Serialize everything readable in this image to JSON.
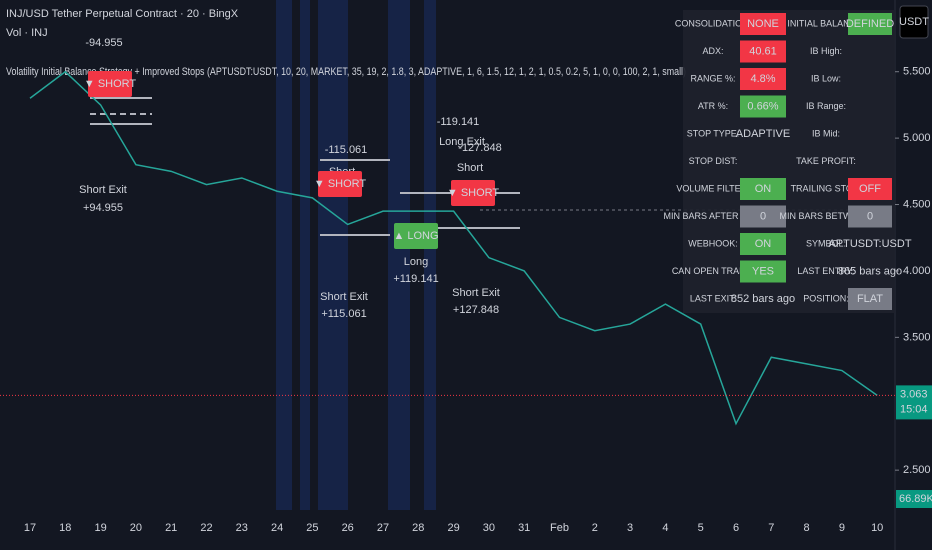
{
  "header": {
    "title": "INJ/USD Tether Perpetual Contract · 20 · BingX",
    "volume": "Vol · INJ",
    "indicator": "Volatility Initial Balance Strategy + Improved Stops (APTUSDT:USDT, 10, 20, MARKET, 35, 19, 2, 1.8, 3, ADAPTIVE, 1, 6, 1.5, 12, 1, 2, 1, 0.5, 0.2, 5, 1, 0, 0, 100, 2, 1, small)",
    "currency": "USDT"
  },
  "chart_data": {
    "type": "line",
    "categories": [
      "17",
      "18",
      "19",
      "20",
      "21",
      "22",
      "23",
      "24",
      "25",
      "26",
      "27",
      "28",
      "29",
      "30",
      "31",
      "Feb",
      "2",
      "3",
      "4",
      "5",
      "6",
      "7",
      "8",
      "9",
      "10"
    ],
    "values": [
      5.3,
      5.5,
      5.25,
      4.8,
      4.75,
      4.65,
      4.7,
      4.6,
      4.55,
      4.35,
      4.45,
      4.45,
      4.45,
      4.1,
      4.0,
      3.65,
      3.55,
      3.6,
      3.75,
      3.6,
      2.85,
      3.35,
      3.3,
      3.25,
      3.063
    ],
    "color": "#26a69a",
    "ylim": [
      2.2,
      6.04
    ],
    "yticks": [
      {
        "value": 2.5,
        "label": "2.500"
      },
      {
        "value": 3.5,
        "label": "3.500"
      },
      {
        "value": 4,
        "label": "4.000"
      },
      {
        "value": 4.5,
        "label": "4.500"
      },
      {
        "value": 5,
        "label": "5.000"
      },
      {
        "value": 5.5,
        "label": "5.500"
      }
    ],
    "last_price": 3.063,
    "countdown": "15:04",
    "last_volume": "66.89K"
  },
  "annotations": [
    "-94.955",
    "▼ SHORT",
    "Short Exit",
    "+94.955",
    "-115.061",
    "Short",
    "▼ SHORT",
    "Short Exit",
    "+115.061",
    "▲ LONG",
    "Long",
    "+119.141",
    "-119.141",
    "Long Exit",
    "-127.848",
    "Short",
    "▼ SHORT",
    "Short Exit",
    "+127.848"
  ],
  "table": [
    {
      "label": "CONSOLIDATION:",
      "value": "NONE",
      "bg": "#f23645"
    },
    {
      "label": "INITIAL BALANCE:",
      "value": "DEFINED",
      "bg": "#4caf50"
    },
    {
      "label": "ADX:",
      "value": "40.61",
      "bg": "#f23645"
    },
    {
      "label": "IB High:"
    },
    {
      "label": "RANGE %:",
      "value": "4.8%",
      "bg": "#f23645"
    },
    {
      "label": "IB Low:"
    },
    {
      "label": "ATR %:",
      "value": "0.66%",
      "bg": "#4caf50"
    },
    {
      "label": "IB Range:"
    },
    {
      "label": "STOP TYPE:",
      "value": "ADAPTIVE",
      "fg": "#ffeb3b"
    },
    {
      "label": "IB Mid:"
    },
    {
      "label": "STOP DIST:"
    },
    {
      "label": "TAKE PROFIT:"
    },
    {
      "label": "VOLUME FILTER:",
      "value": "ON",
      "bg": "#4caf50"
    },
    {
      "label": "TRAILING STOP:",
      "value": "OFF",
      "bg": "#f23645"
    },
    {
      "label": "MIN BARS AFTER EXIT:",
      "value": "0",
      "bg": "#787b86"
    },
    {
      "label": "MIN BARS BETWEEN:",
      "value": "0",
      "bg": "#787b86"
    },
    {
      "label": "WEBHOOK:",
      "value": "ON",
      "bg": "#4caf50"
    },
    {
      "label": "SYMBOL:",
      "value": "APTUSDT:USDT"
    },
    {
      "label": "CAN OPEN TRADE:",
      "value": "YES",
      "bg": "#4caf50"
    },
    {
      "label": "LAST ENTRY:",
      "value": "865 bars ago"
    },
    {
      "label": "LAST EXIT:",
      "value": "852 bars ago"
    },
    {
      "label": "POSITION:",
      "value": "FLAT",
      "bg": "#787b86"
    }
  ]
}
